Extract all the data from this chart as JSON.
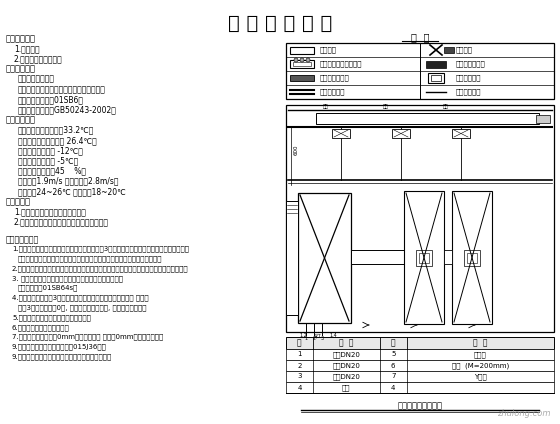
{
  "title": "设 计 施 工 说 明",
  "bg_color": "#ffffff",
  "title_fontsize": 14,
  "watermark": "zhulong.com",
  "legend_title": "图  例",
  "legend_rows": [
    {
      "lsym": "rect_hollow",
      "llabel": "风机盘管",
      "rsym": "x_cross_rect",
      "rlabel": "新风机组"
    },
    {
      "lsym": "rect_coil",
      "llabel": "风机盘管连接弯头管道",
      "rsym": "rect_fill_dark",
      "rlabel": "单层百叶回风口"
    },
    {
      "lsym": "rect_gray_dashed",
      "llabel": "双层百叶回风口",
      "rsym": "rect_inner_border",
      "rlabel": "单层百叶风口"
    },
    {
      "lsym": "double_line",
      "llabel": "空调冷凝水管",
      "rsym": "single_dashed",
      "rlabel": "空调冷凝水管"
    }
  ],
  "parts_table_headers": [
    "件",
    "名  称",
    "件",
    "名  称"
  ],
  "parts_table_rows": [
    [
      "1",
      "钢管DN20",
      "5",
      "钢管衬"
    ],
    [
      "2",
      "钢管DN20",
      "6",
      "弯头  (M=200mm)"
    ],
    [
      "3",
      "钢管DN20",
      "7",
      "Y型阀"
    ],
    [
      "4",
      "制动",
      "4",
      ""
    ]
  ],
  "diagram_title": "风机盘管安装大样图",
  "left_lines": [
    {
      "text": "一、工程概述",
      "indent": 0,
      "bold": true,
      "size": 6.0
    },
    {
      "text": "1.工程概述",
      "indent": 8,
      "bold": false,
      "size": 5.5
    },
    {
      "text": "2.建筑物概述：办公楼",
      "indent": 8,
      "bold": false,
      "size": 5.5
    },
    {
      "text": "二、设计依据",
      "indent": 0,
      "bold": true,
      "size": 6.0
    },
    {
      "text": "暖通空调设计规范",
      "indent": 12,
      "bold": false,
      "size": 5.5
    },
    {
      "text": "建筑给水排水及采暖工程施工质量验收规范",
      "indent": 12,
      "bold": false,
      "size": 5.5
    },
    {
      "text": "【图集参考图集】01SB6）",
      "indent": 12,
      "bold": false,
      "size": 5.5
    },
    {
      "text": "【施工验收规范】GB50243-2002）",
      "indent": 12,
      "bold": false,
      "size": 5.5
    },
    {
      "text": "三、设计参数",
      "indent": 0,
      "bold": true,
      "size": 6.0
    },
    {
      "text": "夏季室外计算干球温度33.2℃；",
      "indent": 12,
      "bold": false,
      "size": 5.5
    },
    {
      "text": "夏季室外计算湿球温度 26.4℃；",
      "indent": 12,
      "bold": false,
      "size": 5.5
    },
    {
      "text": "冬季室外计算温度 -12℃；",
      "indent": 12,
      "bold": false,
      "size": 5.5
    },
    {
      "text": "冬季室外计算温度 -5℃；",
      "indent": 12,
      "bold": false,
      "size": 5.5
    },
    {
      "text": "冬季室外相对湿度45    %）",
      "indent": 12,
      "bold": false,
      "size": 5.5
    },
    {
      "text": "送风速度1.9m/s 中部送风速2.8m/s；",
      "indent": 12,
      "bold": false,
      "size": 5.5
    },
    {
      "text": "送风温度24~26℃ 送风温度18~20℃",
      "indent": 12,
      "bold": false,
      "size": 5.5
    },
    {
      "text": "四、对系统",
      "indent": 0,
      "bold": true,
      "size": 6.0
    },
    {
      "text": "1.本建筑物采用集中式新风系统。",
      "indent": 8,
      "bold": false,
      "size": 5.5
    },
    {
      "text": "2.本建筑物各房间采用风机盘管加新风系统。",
      "indent": 8,
      "bold": false,
      "size": 5.5
    }
  ],
  "bottom_lines": [
    {
      "text": "五、施工说明：",
      "indent": 0,
      "bold": true,
      "size": 5.8
    },
    {
      "text": "1.风管制作：风管制作应符合施工及验收规范、3号国标暖通图集的规定，风管的加固方式、",
      "indent": 6,
      "bold": false,
      "size": 5.0
    },
    {
      "text": "法兰制作、密封材料、咬口形式、连接方式，必须符合施工及质量验收要求。",
      "indent": 12,
      "bold": false,
      "size": 5.0
    },
    {
      "text": "2.风管安装：吊支架安装、风机安装、调风器安装、消声弯头的安装、满足施工及验收要求。",
      "indent": 6,
      "bold": false,
      "size": 5.0
    },
    {
      "text": "3. 保温材料：采用难燃型橡塑保温材料保温，保温厚度按",
      "indent": 6,
      "bold": false,
      "size": 5.0
    },
    {
      "text": "相关国标图集01SB64s。",
      "indent": 12,
      "bold": false,
      "size": 5.0
    },
    {
      "text": "4.管道安装要按照平3处、地面处施工、安装时须满足净高要求 各部分",
      "indent": 6,
      "bold": false,
      "size": 5.0
    },
    {
      "text": "安装3处、安装尺寸0处, 保证各消防通道设置, 保证防排烟通道。",
      "indent": 12,
      "bold": false,
      "size": 5.0
    },
    {
      "text": "5.管道的支吊架的施工应符合施工规范。",
      "indent": 6,
      "bold": false,
      "size": 5.0
    },
    {
      "text": "6.风机盘管安装方式见说明。",
      "indent": 6,
      "bold": false,
      "size": 5.0
    },
    {
      "text": "7.冷凝水管道：应采用0mm，其外需采用 应采用0mm，其外需采用。",
      "indent": 6,
      "bold": false,
      "size": 5.0
    },
    {
      "text": "9.其他采暖管道施工安装应符合015J36热。",
      "indent": 6,
      "bold": false,
      "size": 5.0
    },
    {
      "text": "9.风机盘管型号规格应符合图纸规格、型号、备注。",
      "indent": 6,
      "bold": false,
      "size": 5.0
    }
  ]
}
